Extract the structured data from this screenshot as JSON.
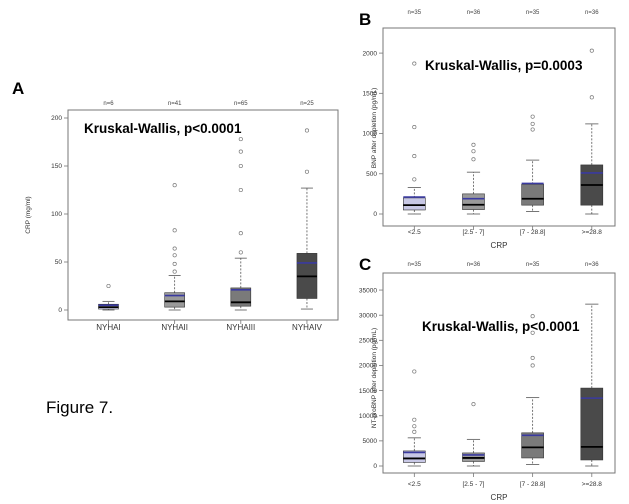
{
  "figure": {
    "caption": "Figure 7"
  },
  "chart_data": [
    {
      "type": "box",
      "panel": "A",
      "annotation": "Kruskal-Wallis, p<0.0001",
      "xlabel": "",
      "ylabel": "CRP (mg/ml)",
      "ylim": [
        0,
        200
      ],
      "yticks": [
        0,
        50,
        100,
        150,
        200
      ],
      "categories": [
        "NYHAI",
        "NYHAII",
        "NYHAIII",
        "NYHAIV"
      ],
      "n_labels": [
        "n=6",
        "n=41",
        "n=65",
        "n=25"
      ],
      "box_colors": [
        "#c8c8e6",
        "#9a9a9a",
        "#7a7a7a",
        "#4a4a4a"
      ],
      "mean_color": "#3a3aa0",
      "boxes": [
        {
          "whisker_low": 0,
          "q1": 1,
          "median": 3,
          "q3": 6,
          "whisker_high": 9,
          "mean": 5,
          "outliers": [
            25
          ]
        },
        {
          "whisker_low": 0,
          "q1": 3,
          "median": 9,
          "q3": 18,
          "whisker_high": 36,
          "mean": 15,
          "outliers": [
            40,
            48,
            57,
            64,
            83,
            130
          ]
        },
        {
          "whisker_low": 0,
          "q1": 4,
          "median": 8,
          "q3": 23,
          "whisker_high": 54,
          "mean": 21,
          "outliers": [
            60,
            80,
            125,
            150,
            165,
            178
          ]
        },
        {
          "whisker_low": 1,
          "q1": 12,
          "median": 35,
          "q3": 59,
          "whisker_high": 127,
          "mean": 49,
          "outliers": [
            144,
            187
          ]
        }
      ]
    },
    {
      "type": "box",
      "panel": "B",
      "annotation": "Kruskal-Wallis, p=0.0003",
      "xlabel": "CRP",
      "ylabel": "BNP after depletion (pg/mL)",
      "ylim": [
        0,
        2200
      ],
      "yticks": [
        0,
        500,
        1000,
        1500,
        2000
      ],
      "categories": [
        "<2.5",
        "[2.5 - 7]",
        "[7 - 28.8]",
        ">=28.8"
      ],
      "n_labels": [
        "n=35",
        "n=36",
        "n=35",
        "n=36"
      ],
      "box_colors": [
        "#c8c8e6",
        "#9a9a9a",
        "#7a7a7a",
        "#4a4a4a"
      ],
      "mean_color": "#3a3aa0",
      "boxes": [
        {
          "whisker_low": 0,
          "q1": 50,
          "median": 110,
          "q3": 200,
          "whisker_high": 330,
          "mean": 210,
          "outliers": [
            430,
            720,
            1080,
            1870
          ]
        },
        {
          "whisker_low": 0,
          "q1": 55,
          "median": 115,
          "q3": 250,
          "whisker_high": 520,
          "mean": 190,
          "outliers": [
            680,
            780,
            860
          ]
        },
        {
          "whisker_low": 30,
          "q1": 110,
          "median": 190,
          "q3": 370,
          "whisker_high": 670,
          "mean": 380,
          "outliers": [
            1050,
            1120,
            1210
          ]
        },
        {
          "whisker_low": 0,
          "q1": 110,
          "median": 360,
          "q3": 610,
          "whisker_high": 1120,
          "mean": 510,
          "outliers": [
            1450,
            2030
          ]
        }
      ]
    },
    {
      "type": "box",
      "panel": "C",
      "annotation": "Kruskal-Wallis, p<0.0001",
      "xlabel": "CRP",
      "ylabel": "NT-proBNP after depletion (pg/mL)",
      "ylim": [
        0,
        37000
      ],
      "yticks": [
        0,
        5000,
        10000,
        15000,
        20000,
        25000,
        30000,
        35000
      ],
      "categories": [
        "<2.5",
        "[2.5 - 7]",
        "[7 - 28.8]",
        ">=28.8"
      ],
      "n_labels": [
        "n=35",
        "n=36",
        "n=35",
        "n=36"
      ],
      "box_colors": [
        "#c8c8e6",
        "#9a9a9a",
        "#7a7a7a",
        "#4a4a4a"
      ],
      "mean_color": "#3a3aa0",
      "boxes": [
        {
          "whisker_low": 0,
          "q1": 700,
          "median": 1500,
          "q3": 3000,
          "whisker_high": 5600,
          "mean": 2700,
          "outliers": [
            6800,
            7900,
            9200,
            18800
          ]
        },
        {
          "whisker_low": 0,
          "q1": 900,
          "median": 1600,
          "q3": 2600,
          "whisker_high": 5300,
          "mean": 2200,
          "outliers": [
            12300
          ]
        },
        {
          "whisker_low": 300,
          "q1": 1600,
          "median": 3700,
          "q3": 6600,
          "whisker_high": 13600,
          "mean": 6100,
          "outliers": [
            20000,
            21500,
            26500,
            29800
          ]
        },
        {
          "whisker_low": 0,
          "q1": 1200,
          "median": 3800,
          "q3": 15500,
          "whisker_high": 32200,
          "mean": 13500,
          "outliers": []
        }
      ]
    }
  ]
}
